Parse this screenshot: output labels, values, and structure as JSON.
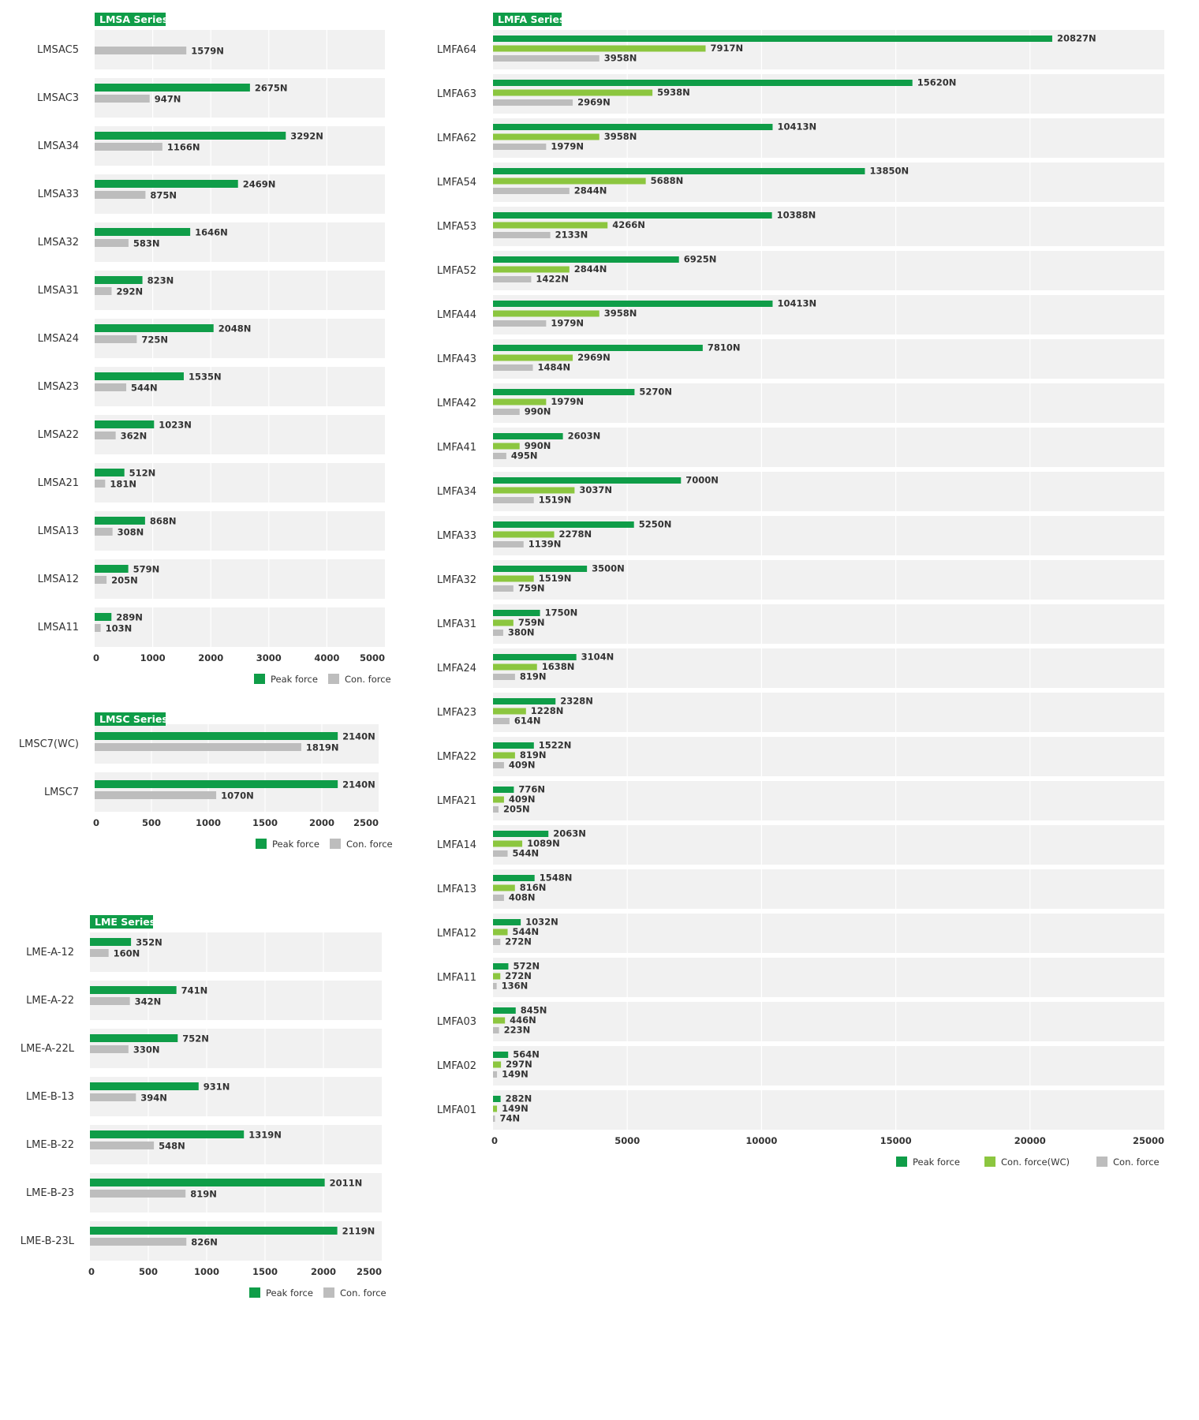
{
  "colors": {
    "peak": "#0f9d48",
    "con_wc": "#8cc63f",
    "con": "#bdbdbd",
    "row_bg": "#f1f1f1",
    "grid": "#ffffff",
    "tag_bg": "#0f9d48"
  },
  "chart_data": [
    {
      "type": "bar",
      "orientation": "horizontal",
      "title": "LMSA Series",
      "xlim": [
        0,
        5000
      ],
      "xticks": [
        "0",
        "1000",
        "2000",
        "3000",
        "4000",
        "5000"
      ],
      "categories": [
        "LMSAC5",
        "LMSAC3",
        "LMSA34",
        "LMSA33",
        "LMSA32",
        "LMSA31",
        "LMSA24",
        "LMSA23",
        "LMSA22",
        "LMSA21",
        "LMSA13",
        "LMSA12",
        "LMSA11"
      ],
      "series": [
        {
          "name": "Peak force",
          "color_key": "peak",
          "values": [
            null,
            2675,
            3292,
            2469,
            1646,
            823,
            2048,
            1535,
            1023,
            512,
            868,
            579,
            289
          ],
          "labels": [
            "",
            "2675N",
            "3292N",
            "2469N",
            "1646N",
            "823N",
            "2048N",
            "1535N",
            "1023N",
            "512N",
            "868N",
            "579N",
            "289N"
          ]
        },
        {
          "name": "Con. force",
          "color_key": "con",
          "values": [
            1579,
            947,
            1166,
            875,
            583,
            292,
            725,
            544,
            362,
            181,
            308,
            205,
            103
          ],
          "labels": [
            "1579N",
            "947N",
            "1166N",
            "875N",
            "583N",
            "292N",
            "725N",
            "544N",
            "362N",
            "181N",
            "308N",
            "205N",
            "103N"
          ]
        }
      ],
      "legend": [
        "Peak force",
        "Con. force"
      ],
      "legend_position": "bottom-right",
      "grid": true
    },
    {
      "type": "bar",
      "orientation": "horizontal",
      "title": "LMSC Series",
      "xlim": [
        0,
        2500
      ],
      "xticks": [
        "0",
        "500",
        "1000",
        "1500",
        "2000",
        "2500"
      ],
      "categories": [
        "LMSC7(WC)",
        "LMSC7"
      ],
      "series": [
        {
          "name": "Peak force",
          "color_key": "peak",
          "values": [
            2140,
            2140
          ],
          "labels": [
            "2140N",
            "2140N"
          ]
        },
        {
          "name": "Con. force",
          "color_key": "con",
          "values": [
            1819,
            1070
          ],
          "labels": [
            "1819N",
            "1070N"
          ]
        }
      ],
      "legend": [
        "Peak force",
        "Con. force"
      ],
      "legend_position": "bottom-right",
      "grid": true
    },
    {
      "type": "bar",
      "orientation": "horizontal",
      "title": "LME Series",
      "xlim": [
        0,
        2500
      ],
      "xticks": [
        "0",
        "500",
        "1000",
        "1500",
        "2000",
        "2500"
      ],
      "categories": [
        "LME-A-12",
        "LME-A-22",
        "LME-A-22L",
        "LME-B-13",
        "LME-B-22",
        "LME-B-23",
        "LME-B-23L"
      ],
      "series": [
        {
          "name": "Peak force",
          "color_key": "peak",
          "values": [
            352,
            741,
            752,
            931,
            1319,
            2011,
            2119
          ],
          "labels": [
            "352N",
            "741N",
            "752N",
            "931N",
            "1319N",
            "2011N",
            "2119N"
          ]
        },
        {
          "name": "Con. force",
          "color_key": "con",
          "values": [
            160,
            342,
            330,
            394,
            548,
            819,
            826
          ],
          "labels": [
            "160N",
            "342N",
            "330N",
            "394N",
            "548N",
            "819N",
            "826N"
          ]
        }
      ],
      "legend": [
        "Peak force",
        "Con. force"
      ],
      "legend_position": "bottom-right",
      "grid": true
    },
    {
      "type": "bar",
      "orientation": "horizontal",
      "title": "LMFA Series",
      "xlim": [
        0,
        25000
      ],
      "xticks": [
        "0",
        "5000",
        "10000",
        "15000",
        "20000",
        "25000"
      ],
      "categories": [
        "LMFA64",
        "LMFA63",
        "LMFA62",
        "LMFA54",
        "LMFA53",
        "LMFA52",
        "LMFA44",
        "LMFA43",
        "LMFA42",
        "LMFA41",
        "LMFA34",
        "LMFA33",
        "LMFA32",
        "LMFA31",
        "LMFA24",
        "LMFA23",
        "LMFA22",
        "LMFA21",
        "LMFA14",
        "LMFA13",
        "LMFA12",
        "LMFA11",
        "LMFA03",
        "LMFA02",
        "LMFA01"
      ],
      "series": [
        {
          "name": "Peak force",
          "color_key": "peak",
          "values": [
            20827,
            15620,
            10413,
            13850,
            10388,
            6925,
            10413,
            7810,
            5270,
            2603,
            7000,
            5250,
            3500,
            1750,
            3104,
            2328,
            1522,
            776,
            2063,
            1548,
            1032,
            572,
            845,
            564,
            282
          ],
          "labels": [
            "20827N",
            "15620N",
            "10413N",
            "13850N",
            "10388N",
            "6925N",
            "10413N",
            "7810N",
            "5270N",
            "2603N",
            "7000N",
            "5250N",
            "3500N",
            "1750N",
            "3104N",
            "2328N",
            "1522N",
            "776N",
            "2063N",
            "1548N",
            "1032N",
            "572N",
            "845N",
            "564N",
            "282N"
          ]
        },
        {
          "name": "Con. force(WC)",
          "color_key": "con_wc",
          "values": [
            7917,
            5938,
            3958,
            5688,
            4266,
            2844,
            3958,
            2969,
            1979,
            990,
            3037,
            2278,
            1519,
            759,
            1638,
            1228,
            819,
            409,
            1089,
            816,
            544,
            272,
            446,
            297,
            149
          ],
          "labels": [
            "7917N",
            "5938N",
            "3958N",
            "5688N",
            "4266N",
            "2844N",
            "3958N",
            "2969N",
            "1979N",
            "990N",
            "3037N",
            "2278N",
            "1519N",
            "759N",
            "1638N",
            "1228N",
            "819N",
            "409N",
            "1089N",
            "816N",
            "544N",
            "272N",
            "446N",
            "297N",
            "149N"
          ]
        },
        {
          "name": "Con. force",
          "color_key": "con",
          "values": [
            3958,
            2969,
            1979,
            2844,
            2133,
            1422,
            1979,
            1484,
            990,
            495,
            1519,
            1139,
            759,
            380,
            819,
            614,
            409,
            205,
            544,
            408,
            272,
            136,
            223,
            149,
            74
          ],
          "labels": [
            "3958N",
            "2969N",
            "1979N",
            "2844N",
            "2133N",
            "1422N",
            "1979N",
            "1484N",
            "990N",
            "495N",
            "1519N",
            "1139N",
            "759N",
            "380N",
            "819N",
            "614N",
            "409N",
            "205N",
            "544N",
            "408N",
            "272N",
            "136N",
            "223N",
            "149N",
            "74N"
          ]
        }
      ],
      "legend": [
        "Peak force",
        "Con. force(WC)",
        "Con. force"
      ],
      "legend_position": "bottom-right",
      "grid": true
    }
  ]
}
